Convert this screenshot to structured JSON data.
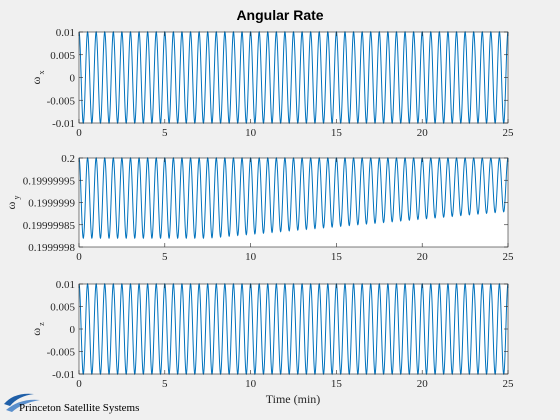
{
  "colors": {
    "background": "#f0f0f0",
    "axes_bg": "#ffffff",
    "line": "#0072bd",
    "axis": "#262626"
  },
  "logo": {
    "text": "Princeton Satellite Systems",
    "icon": "swoosh-logo-icon"
  },
  "chart_data": {
    "title": "Angular Rate",
    "xlabel": "Time (min)",
    "subplots": [
      {
        "type": "line",
        "ylabel": "ω",
        "ylabel_sub": "x",
        "xlim": [
          0,
          25
        ],
        "ylim": [
          -0.01,
          0.01
        ],
        "xticks": [
          0,
          5,
          10,
          15,
          20,
          25
        ],
        "yticks": [
          -0.01,
          -0.005,
          0,
          0.005,
          0.01
        ],
        "ytick_labels": [
          "-0.01",
          "-0.005",
          "0",
          "0.005",
          "0.01"
        ],
        "series": [
          {
            "signal": "sinusoid",
            "cycles": 50,
            "mean": 0,
            "amplitude_start": 0.01,
            "amplitude_end": 0.01
          }
        ]
      },
      {
        "type": "line",
        "ylabel": "ω",
        "ylabel_sub": "y",
        "xlim": [
          0,
          25
        ],
        "ylim": [
          0.1999998,
          0.2
        ],
        "xticks": [
          0,
          5,
          10,
          15,
          20,
          25
        ],
        "yticks": [
          0.1999998,
          0.19999985,
          0.1999999,
          0.19999995,
          0.2
        ],
        "ytick_labels": [
          "0.1999998",
          "0.19999985",
          "0.1999999",
          "0.19999995",
          "0.2"
        ],
        "series": [
          {
            "signal": "sinusoid_decaying_lower_envelope",
            "cycles": 50,
            "max": 0.2,
            "min_start": 0.19999982,
            "min_end": 0.19999988
          }
        ]
      },
      {
        "type": "line",
        "ylabel": "ω",
        "ylabel_sub": "z",
        "xlim": [
          0,
          25
        ],
        "ylim": [
          -0.01,
          0.01
        ],
        "xticks": [
          0,
          5,
          10,
          15,
          20,
          25
        ],
        "yticks": [
          -0.01,
          -0.005,
          0,
          0.005,
          0.01
        ],
        "ytick_labels": [
          "-0.01",
          "-0.005",
          "0",
          "0.005",
          "0.01"
        ],
        "series": [
          {
            "signal": "sinusoid",
            "cycles": 50,
            "mean": 0,
            "amplitude_start": 0.01,
            "amplitude_end": 0.01
          }
        ]
      }
    ]
  }
}
